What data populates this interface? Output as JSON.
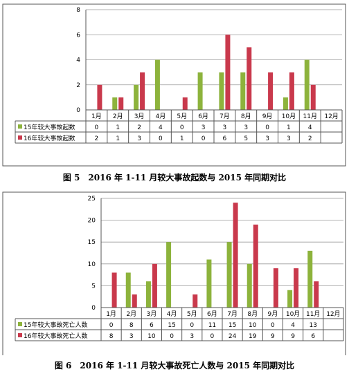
{
  "chart_data": [
    {
      "type": "bar",
      "categories": [
        "1月",
        "2月",
        "3月",
        "4月",
        "5月",
        "6月",
        "7月",
        "8月",
        "9月",
        "10月",
        "11月",
        "12月"
      ],
      "ylim": [
        0,
        8
      ],
      "yticks": [
        "0",
        "2",
        "4",
        "6",
        "8"
      ],
      "grid": true,
      "legend": "data-table-left",
      "series": [
        {
          "name": "15年较大事故起数",
          "color": "#8DB33C",
          "values": [
            0,
            1,
            2,
            4,
            0,
            3,
            3,
            3,
            0,
            1,
            4,
            null
          ],
          "labels": [
            "0",
            "1",
            "2",
            "4",
            "0",
            "3",
            "3",
            "3",
            "0",
            "1",
            "4",
            ""
          ]
        },
        {
          "name": "16年较大事故起数",
          "color": "#C9394C",
          "values": [
            2,
            1,
            3,
            0,
            1,
            0,
            6,
            5,
            3,
            3,
            2,
            null
          ],
          "labels": [
            "2",
            "1",
            "3",
            "0",
            "1",
            "0",
            "6",
            "5",
            "3",
            "3",
            "2",
            ""
          ]
        }
      ],
      "caption": "图 5　2016 年 1-11 月较大事故起数与 2015 年同期对比"
    },
    {
      "type": "bar",
      "categories": [
        "1月",
        "2月",
        "3月",
        "4月",
        "5月",
        "6月",
        "7月",
        "8月",
        "9月",
        "10月",
        "11月",
        "12月"
      ],
      "ylim": [
        0,
        25
      ],
      "yticks": [
        "0",
        "5",
        "10",
        "15",
        "20",
        "25"
      ],
      "grid": true,
      "legend": "data-table-left",
      "series": [
        {
          "name": "15年较大事故死亡人数",
          "color": "#8DB33C",
          "values": [
            0,
            8,
            6,
            15,
            0,
            11,
            15,
            10,
            0,
            4,
            13,
            null
          ],
          "labels": [
            "0",
            "8",
            "6",
            "15",
            "0",
            "11",
            "15",
            "10",
            "0",
            "4",
            "13",
            ""
          ]
        },
        {
          "name": "16年较大事故死亡人数",
          "color": "#C9394C",
          "values": [
            8,
            3,
            10,
            0,
            3,
            0,
            24,
            19,
            9,
            9,
            6,
            null
          ],
          "labels": [
            "8",
            "3",
            "10",
            "0",
            "3",
            "0",
            "24",
            "19",
            "9",
            "9",
            "6",
            ""
          ]
        }
      ],
      "caption": "图 6　2016 年 1-11 月较大事故死亡人数与 2015 年同期对比"
    }
  ]
}
